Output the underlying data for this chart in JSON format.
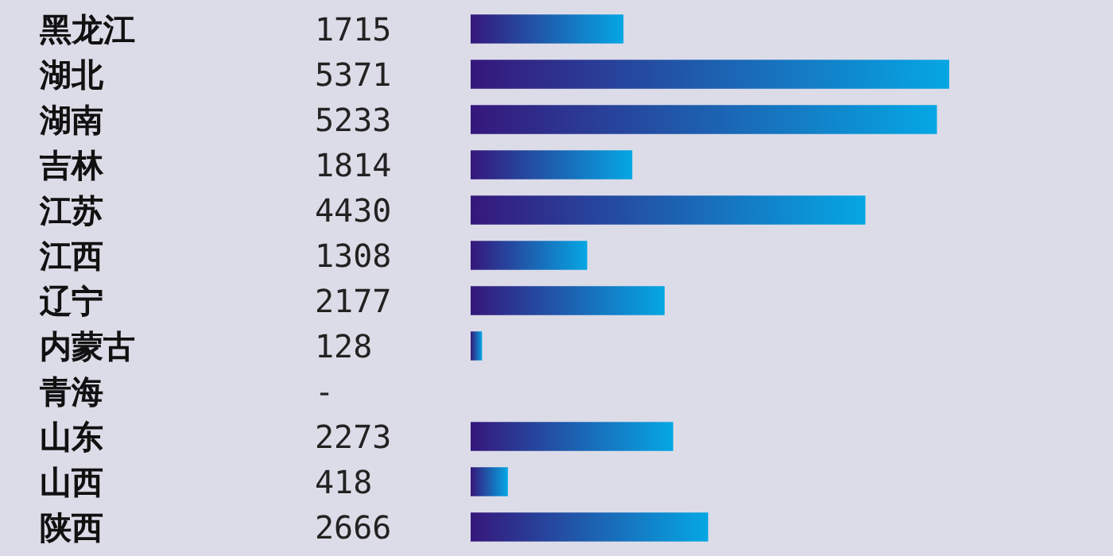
{
  "chart_data": {
    "type": "bar",
    "orientation": "horizontal",
    "categories": [
      "黑龙江",
      "湖北",
      "湖南",
      "吉林",
      "江苏",
      "江西",
      "辽宁",
      "内蒙古",
      "青海",
      "山东",
      "山西",
      "陕西"
    ],
    "values": [
      1715,
      5371,
      5233,
      1814,
      4430,
      1308,
      2177,
      128,
      null,
      2273,
      418,
      2666
    ],
    "value_labels": [
      "1715",
      "5371",
      "5233",
      "1814",
      "4430",
      "1308",
      "2177",
      "128",
      "-",
      "2273",
      "418",
      "2666"
    ],
    "color": "#2060b8"
  }
}
